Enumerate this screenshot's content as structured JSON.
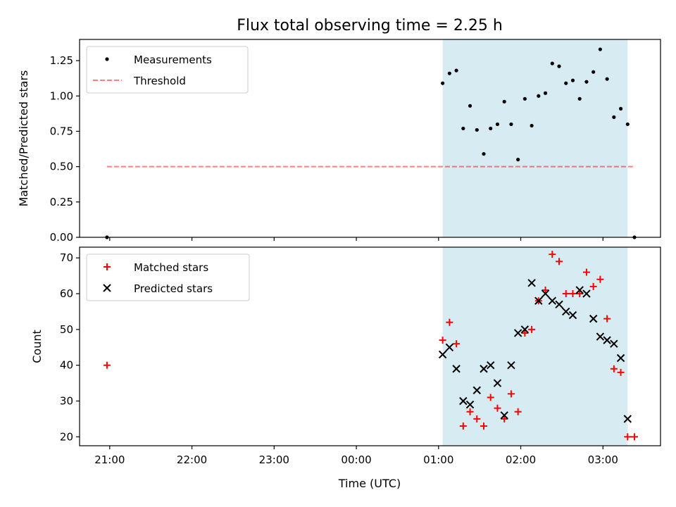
{
  "title": "Flux total observing time = 2.25 h",
  "x_tick_labels": [
    "21:00",
    "22:00",
    "23:00",
    "00:00",
    "01:00",
    "02:00",
    "03:00"
  ],
  "x_label": "Time (UTC)",
  "chart_data": [
    {
      "type": "scatter",
      "ylabel": "Matched/Predicted stars",
      "xlim": [
        "20:38",
        "03:42"
      ],
      "ylim": [
        0.0,
        1.4
      ],
      "yticks": [
        "0.00",
        "0.25",
        "0.50",
        "0.75",
        "1.00",
        "1.25"
      ],
      "legend": {
        "position": "top-left",
        "entries": [
          "Measurements",
          "Threshold"
        ]
      },
      "shaded_interval": {
        "x": [
          "01:03",
          "03:18"
        ],
        "color": "#add8e6"
      },
      "threshold": {
        "name": "Threshold",
        "value": 0.5,
        "x": [
          "20:58",
          "03:23"
        ],
        "color": "#ff0000",
        "style": "dashed"
      },
      "series": [
        {
          "name": "Measurements",
          "color": "#000000",
          "points": [
            {
              "x": "20:58",
              "y": 0.0
            },
            {
              "x": "01:03",
              "y": 1.09
            },
            {
              "x": "01:08",
              "y": 1.16
            },
            {
              "x": "01:13",
              "y": 1.18
            },
            {
              "x": "01:18",
              "y": 0.77
            },
            {
              "x": "01:23",
              "y": 0.93
            },
            {
              "x": "01:28",
              "y": 0.76
            },
            {
              "x": "01:33",
              "y": 0.59
            },
            {
              "x": "01:38",
              "y": 0.77
            },
            {
              "x": "01:43",
              "y": 0.8
            },
            {
              "x": "01:48",
              "y": 0.96
            },
            {
              "x": "01:53",
              "y": 0.8
            },
            {
              "x": "01:58",
              "y": 0.55
            },
            {
              "x": "02:03",
              "y": 0.98
            },
            {
              "x": "02:08",
              "y": 0.79
            },
            {
              "x": "02:13",
              "y": 1.0
            },
            {
              "x": "02:18",
              "y": 1.02
            },
            {
              "x": "02:23",
              "y": 1.23
            },
            {
              "x": "02:28",
              "y": 1.21
            },
            {
              "x": "02:33",
              "y": 1.09
            },
            {
              "x": "02:38",
              "y": 1.11
            },
            {
              "x": "02:43",
              "y": 0.98
            },
            {
              "x": "02:48",
              "y": 1.1
            },
            {
              "x": "02:53",
              "y": 1.17
            },
            {
              "x": "02:58",
              "y": 1.33
            },
            {
              "x": "03:03",
              "y": 1.12
            },
            {
              "x": "03:08",
              "y": 0.85
            },
            {
              "x": "03:13",
              "y": 0.91
            },
            {
              "x": "03:18",
              "y": 0.8
            },
            {
              "x": "03:23",
              "y": 0.0
            }
          ]
        }
      ]
    },
    {
      "type": "scatter",
      "ylabel": "Count",
      "xlabel": "Time (UTC)",
      "xlim": [
        "20:38",
        "03:42"
      ],
      "ylim": [
        17.5,
        73.0
      ],
      "yticks": [
        "20",
        "30",
        "40",
        "50",
        "60",
        "70"
      ],
      "legend": {
        "position": "top-left",
        "entries": [
          "Matched stars",
          "Predicted stars"
        ]
      },
      "shaded_interval": {
        "x": [
          "01:03",
          "03:18"
        ],
        "color": "#add8e6"
      },
      "series": [
        {
          "name": "Matched stars",
          "color": "#ff0000",
          "marker": "+",
          "points": [
            {
              "x": "20:58",
              "y": 40
            },
            {
              "x": "01:03",
              "y": 47
            },
            {
              "x": "01:08",
              "y": 52
            },
            {
              "x": "01:13",
              "y": 46
            },
            {
              "x": "01:18",
              "y": 23
            },
            {
              "x": "01:23",
              "y": 27
            },
            {
              "x": "01:28",
              "y": 25
            },
            {
              "x": "01:33",
              "y": 23
            },
            {
              "x": "01:38",
              "y": 31
            },
            {
              "x": "01:43",
              "y": 28
            },
            {
              "x": "01:48",
              "y": 25
            },
            {
              "x": "01:53",
              "y": 32
            },
            {
              "x": "01:58",
              "y": 27
            },
            {
              "x": "02:03",
              "y": 49
            },
            {
              "x": "02:08",
              "y": 50
            },
            {
              "x": "02:13",
              "y": 58
            },
            {
              "x": "02:18",
              "y": 61
            },
            {
              "x": "02:23",
              "y": 71
            },
            {
              "x": "02:28",
              "y": 69
            },
            {
              "x": "02:33",
              "y": 60
            },
            {
              "x": "02:38",
              "y": 60
            },
            {
              "x": "02:43",
              "y": 60
            },
            {
              "x": "02:48",
              "y": 66
            },
            {
              "x": "02:53",
              "y": 62
            },
            {
              "x": "02:58",
              "y": 64
            },
            {
              "x": "03:03",
              "y": 53
            },
            {
              "x": "03:08",
              "y": 39
            },
            {
              "x": "03:13",
              "y": 38
            },
            {
              "x": "03:18",
              "y": 20
            },
            {
              "x": "03:23",
              "y": 20
            }
          ]
        },
        {
          "name": "Predicted stars",
          "color": "#000000",
          "marker": "x",
          "points": [
            {
              "x": "01:03",
              "y": 43
            },
            {
              "x": "01:08",
              "y": 45
            },
            {
              "x": "01:13",
              "y": 39
            },
            {
              "x": "01:18",
              "y": 30
            },
            {
              "x": "01:23",
              "y": 29
            },
            {
              "x": "01:28",
              "y": 33
            },
            {
              "x": "01:33",
              "y": 39
            },
            {
              "x": "01:38",
              "y": 40
            },
            {
              "x": "01:43",
              "y": 35
            },
            {
              "x": "01:48",
              "y": 26
            },
            {
              "x": "01:53",
              "y": 40
            },
            {
              "x": "01:58",
              "y": 49
            },
            {
              "x": "02:03",
              "y": 50
            },
            {
              "x": "02:08",
              "y": 63
            },
            {
              "x": "02:13",
              "y": 58
            },
            {
              "x": "02:18",
              "y": 60
            },
            {
              "x": "02:23",
              "y": 58
            },
            {
              "x": "02:28",
              "y": 57
            },
            {
              "x": "02:33",
              "y": 55
            },
            {
              "x": "02:38",
              "y": 54
            },
            {
              "x": "02:43",
              "y": 61
            },
            {
              "x": "02:48",
              "y": 60
            },
            {
              "x": "02:53",
              "y": 53
            },
            {
              "x": "02:58",
              "y": 48
            },
            {
              "x": "03:03",
              "y": 47
            },
            {
              "x": "03:08",
              "y": 46
            },
            {
              "x": "03:13",
              "y": 42
            },
            {
              "x": "03:18",
              "y": 25
            }
          ]
        }
      ]
    }
  ]
}
